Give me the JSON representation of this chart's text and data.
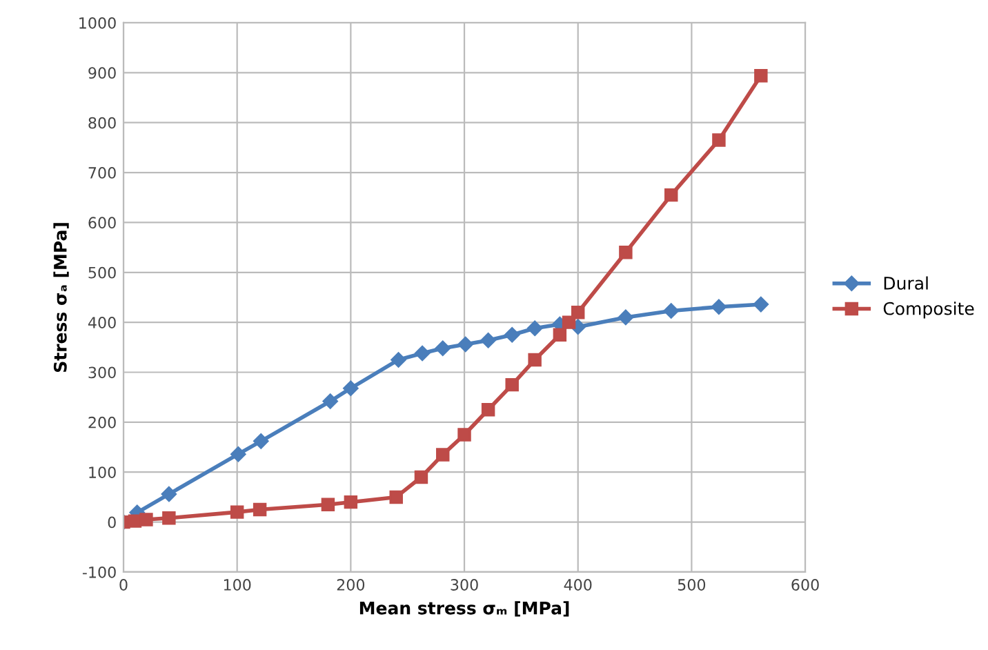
{
  "chart_data": {
    "type": "line",
    "xlabel": "Mean stress σₘ [MPa]",
    "ylabel": "Stress σₐ [MPa]",
    "xlim": [
      0,
      600
    ],
    "xticks": [
      0,
      100,
      200,
      300,
      400,
      500,
      600
    ],
    "ylim": [
      -100,
      1000
    ],
    "yticks": [
      -100,
      0,
      100,
      200,
      300,
      400,
      500,
      600,
      700,
      800,
      900,
      1000
    ],
    "grid": true,
    "legend": "right",
    "series": [
      {
        "name": "Dural",
        "color": "#4a7ebb",
        "marker": "diamond",
        "x": [
          0,
          12,
          40,
          101,
          121,
          182,
          200,
          242,
          263,
          281,
          301,
          321,
          342,
          362,
          384,
          400,
          442,
          482,
          524,
          561
        ],
        "values": [
          0,
          19,
          56,
          136,
          162,
          242,
          268,
          325,
          338,
          348,
          356,
          364,
          375,
          388,
          396,
          391,
          410,
          423,
          431,
          436
        ]
      },
      {
        "name": "Composite",
        "color": "#be4b48",
        "marker": "square",
        "x": [
          0,
          10,
          20,
          40,
          100,
          120,
          180,
          200,
          240,
          262,
          281,
          300,
          321,
          342,
          362,
          384,
          392,
          400,
          442,
          482,
          524,
          561
        ],
        "values": [
          0,
          2,
          5,
          8,
          20,
          25,
          35,
          40,
          50,
          90,
          135,
          175,
          225,
          275,
          325,
          375,
          400,
          420,
          540,
          655,
          765,
          894
        ]
      }
    ]
  }
}
